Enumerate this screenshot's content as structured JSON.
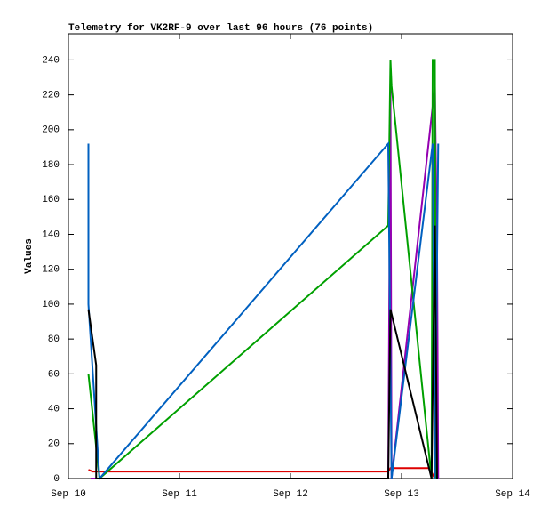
{
  "chart_data": {
    "type": "line",
    "title": "Telemetry for VK2RF-9 over last 96 hours (76 points)",
    "y_label": "Values",
    "xlim": [
      10,
      14
    ],
    "xticks": [
      {
        "value": 10,
        "label": "Sep 10"
      },
      {
        "value": 11,
        "label": "Sep 11"
      },
      {
        "value": 12,
        "label": "Sep 12"
      },
      {
        "value": 13,
        "label": "Sep 13"
      },
      {
        "value": 14,
        "label": "Sep 14"
      }
    ],
    "ylim": [
      0,
      255
    ],
    "yticks": [
      0,
      20,
      40,
      60,
      80,
      100,
      120,
      140,
      160,
      180,
      200,
      220,
      240
    ],
    "series": [
      {
        "color": "#dd0000",
        "x": [
          10.18,
          10.22,
          12.88,
          12.9,
          13.25,
          13.3
        ],
        "values": [
          5,
          4,
          4,
          6,
          6,
          0
        ]
      },
      {
        "color": "#9400b0",
        "x": [
          10.2,
          12.88,
          12.9,
          12.91,
          13.3,
          13.32,
          13.33
        ],
        "values": [
          0,
          0,
          225,
          0,
          225,
          128,
          0
        ]
      },
      {
        "color": "#00a000",
        "x": [
          10.18,
          10.28,
          12.88,
          12.9,
          12.91,
          13.27,
          13.28,
          13.3,
          13.31
        ],
        "values": [
          60,
          0,
          145,
          240,
          225,
          0,
          240,
          240,
          0
        ]
      },
      {
        "color": "#0060c0",
        "x": [
          10.18,
          10.18,
          10.28,
          12.88,
          12.91,
          13.28,
          13.3,
          13.33
        ],
        "values": [
          192,
          100,
          0,
          192,
          0,
          192,
          0,
          192
        ]
      },
      {
        "color": "#000000",
        "x": [
          10.18,
          10.25,
          10.25,
          12.88,
          12.9,
          13.27,
          13.3,
          13.32
        ],
        "values": [
          97,
          65,
          0,
          0,
          97,
          0,
          145,
          0
        ]
      }
    ]
  }
}
